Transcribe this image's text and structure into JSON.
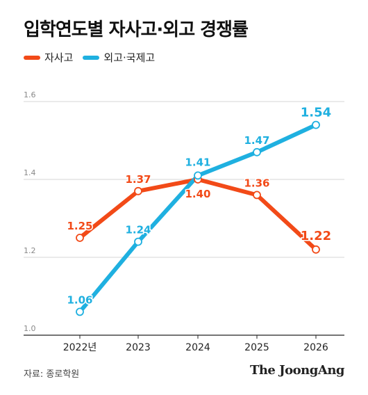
{
  "title": "입학연도별 자사고·외고 경쟁률",
  "legend": [
    {
      "label": "자사고",
      "color": "#f24a18"
    },
    {
      "label": "외고·국제고",
      "color": "#1fb0e0"
    }
  ],
  "source": "자료: 종로학원",
  "brand": "The JoongAng",
  "chart_data": {
    "type": "line",
    "x": [
      "2022년",
      "2023",
      "2024",
      "2025",
      "2026"
    ],
    "ylim": [
      1.0,
      1.6
    ],
    "yticks": [
      "1.0",
      "1.2",
      "1.4",
      "1.6"
    ],
    "grid": true,
    "legend_position": "top-left",
    "series": [
      {
        "name": "자사고",
        "color": "#f24a18",
        "values": [
          1.25,
          1.37,
          1.4,
          1.36,
          1.22
        ],
        "labels": [
          "1.25",
          "1.37",
          "1.40",
          "1.36",
          "1.22"
        ]
      },
      {
        "name": "외고·국제고",
        "color": "#1fb0e0",
        "values": [
          1.06,
          1.24,
          1.41,
          1.47,
          1.54
        ],
        "labels": [
          "1.06",
          "1.24",
          "1.41",
          "1.47",
          "1.54"
        ]
      }
    ]
  }
}
